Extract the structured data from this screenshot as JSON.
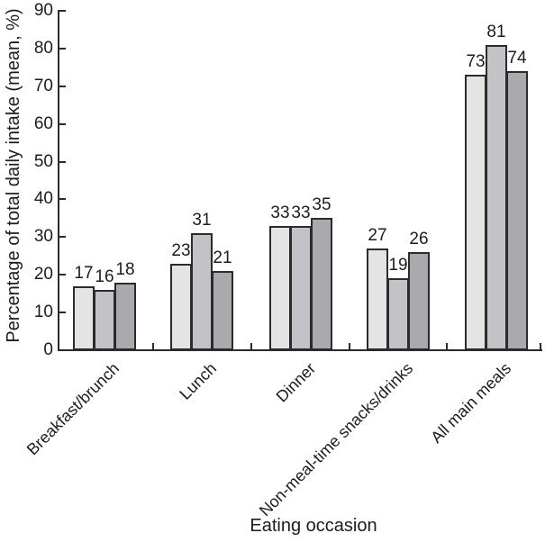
{
  "figure": {
    "background": "#ffffff",
    "text_color": "#1c1c1c",
    "axis_color": "#2b2b2b"
  },
  "chart_data": {
    "type": "bar",
    "title": "",
    "xlabel": "Eating occasion",
    "ylabel": "Percentage of total daily intake (mean, %)",
    "categories": [
      "Breakfast/brunch",
      "Lunch",
      "Dinner",
      "Non-meal-time snacks/drinks",
      "All main meals"
    ],
    "series": [
      {
        "name": "light-gray-series",
        "color": "#e4e4e4",
        "values": [
          17,
          23,
          33,
          27,
          73
        ]
      },
      {
        "name": "medium-gray-series",
        "color": "#c3c3c7",
        "values": [
          16,
          31,
          33,
          19,
          81
        ]
      },
      {
        "name": "dark-gray-series",
        "color": "#aaaaae",
        "values": [
          18,
          21,
          35,
          26,
          74
        ]
      }
    ],
    "bar_value_labels": true,
    "bar_edge_color": "#2b2b2b",
    "ylim": [
      0,
      90
    ],
    "yticks": [
      0,
      10,
      20,
      30,
      40,
      50,
      60,
      70,
      80,
      90
    ],
    "grid": false,
    "legend": false
  }
}
